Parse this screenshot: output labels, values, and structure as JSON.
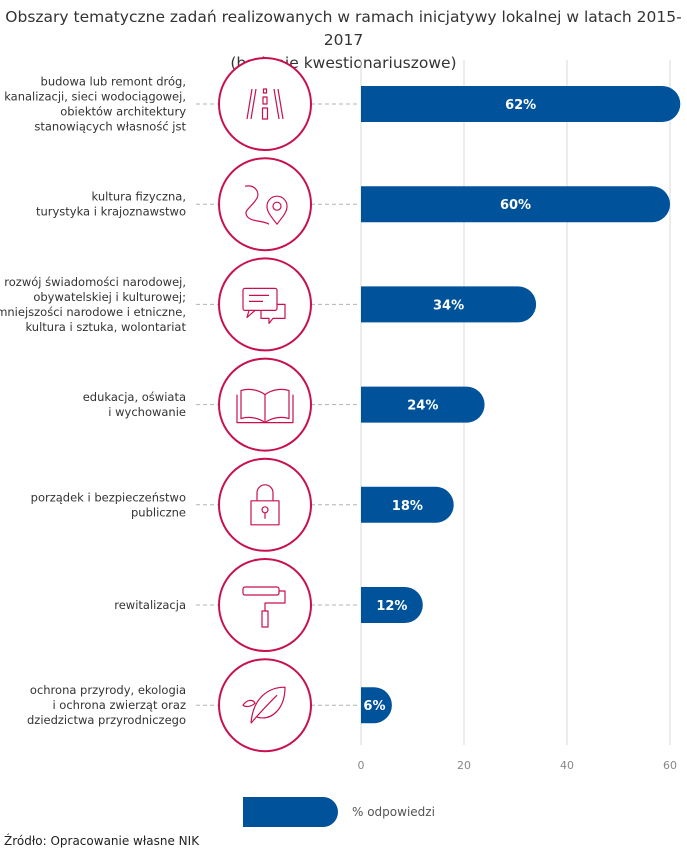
{
  "chart_data": {
    "type": "bar",
    "orientation": "horizontal",
    "title": "Obszary tematyczne zadań realizowanych w ramach inicjatywy lokalnej w latach 2015-2017",
    "subtitle": "(badanie kwestionariuszowe)",
    "categories": [
      [
        "budowa lub remont dróg,",
        "kanalizacji, sieci wodociągowej,",
        "obiektów architektury",
        "stanowiących własność jst"
      ],
      [
        "kultura fizyczna,",
        "turystyka i krajoznawstwo"
      ],
      [
        "rozwój świadomości narodowej,",
        "obywatelskiej i kulturowej;",
        "mniejszości narodowe i etniczne,",
        "kultura i sztuka, wolontariat"
      ],
      [
        "edukacja, oświata",
        "i wychowanie"
      ],
      [
        "porządek i bezpieczeństwo",
        "publiczne"
      ],
      [
        "rewitalizacja"
      ],
      [
        "ochrona przyrody, ekologia",
        "i ochrona zwierząt oraz",
        "dziedzictwa przyrodniczego"
      ]
    ],
    "icons": [
      "road-icon",
      "map-route-pin-icon",
      "chat-bubbles-icon",
      "open-book-icon",
      "padlock-icon",
      "paint-roller-icon",
      "leaf-icon"
    ],
    "series": [
      {
        "name": "% odpowiedzi",
        "values": [
          62,
          60,
          34,
          24,
          18,
          12,
          6
        ]
      }
    ],
    "data_labels": [
      "62%",
      "60%",
      "34%",
      "24%",
      "18%",
      "12%",
      "6%"
    ],
    "xlim": [
      0,
      62
    ],
    "xticks": [
      0,
      20,
      40,
      60
    ],
    "xtick_labels": [
      "0",
      "20",
      "40",
      "60"
    ],
    "grid": true,
    "legend_position": "bottom",
    "colors": {
      "bar": "#00529b",
      "icon": "#c8104e",
      "grid": "#d9d9d9",
      "dash": "#b3b3b3"
    }
  },
  "source": "Źródło: Opracowanie własne NIK"
}
